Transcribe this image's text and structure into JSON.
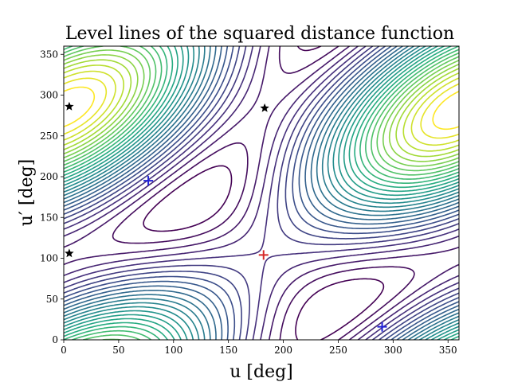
{
  "chart_data": {
    "type": "contour",
    "title": "Level lines of the squared distance function",
    "xlabel": "u [deg]",
    "ylabel": "u′ [deg]",
    "xlim": [
      0,
      360
    ],
    "ylim": [
      0,
      360
    ],
    "xticks": [
      0,
      50,
      100,
      150,
      200,
      250,
      300,
      350
    ],
    "yticks": [
      0,
      50,
      100,
      150,
      200,
      250,
      300,
      350
    ],
    "grid": false,
    "colormap": "viridis",
    "level_count": 30,
    "global_maximum": {
      "x": 182,
      "y": 104
    },
    "markers": [
      {
        "kind": "plus",
        "color": "#d62728",
        "x": 182,
        "y": 104
      },
      {
        "kind": "plus",
        "color": "#1f1fd6",
        "x": 77,
        "y": 195
      },
      {
        "kind": "plus",
        "color": "#1f1fd6",
        "x": 290,
        "y": 16
      },
      {
        "kind": "star",
        "color": "#000000",
        "x": 5,
        "y": 286
      },
      {
        "kind": "star",
        "color": "#000000",
        "x": 5,
        "y": 106
      },
      {
        "kind": "star",
        "color": "#000000",
        "x": 183,
        "y": 284
      }
    ]
  }
}
